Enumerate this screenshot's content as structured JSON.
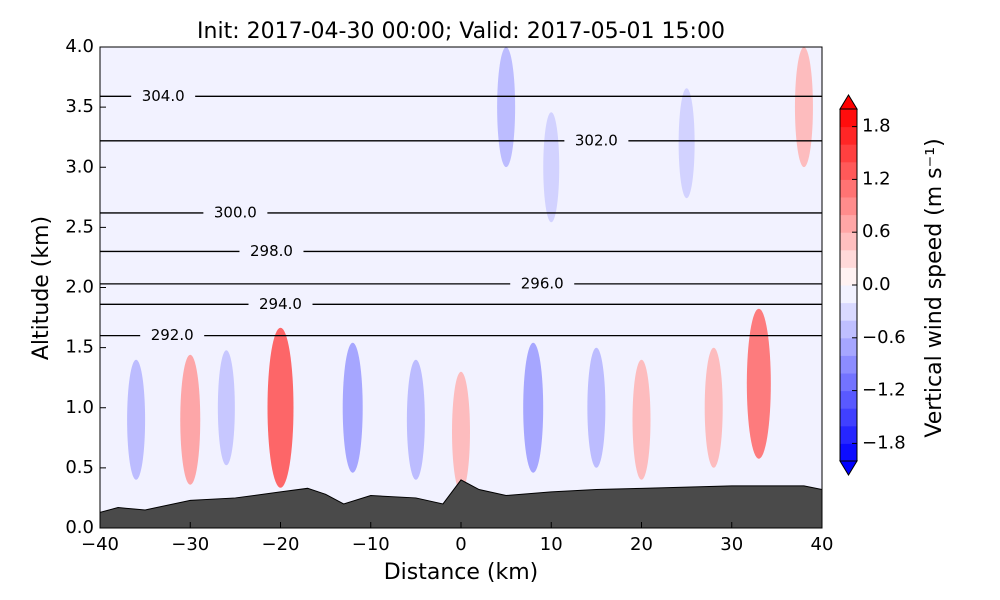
{
  "chart_data": {
    "type": "cross-section",
    "title": "Init: 2017-04-30 00:00; Valid: 2017-05-01 15:00",
    "xlabel": "Distance (km)",
    "ylabel": "Altitude (km)",
    "xlim": [
      -40,
      40
    ],
    "xticks": [
      {
        "value": -40,
        "label": "−40"
      },
      {
        "value": -30,
        "label": "−30"
      },
      {
        "value": -20,
        "label": "−20"
      },
      {
        "value": -10,
        "label": "−10"
      },
      0,
      10,
      20,
      30,
      40
    ],
    "ylim": [
      0,
      4
    ],
    "yticks": [
      {
        "value": 0,
        "label": "0.0"
      },
      {
        "value": 0.5,
        "label": "0.5"
      },
      {
        "value": 1,
        "label": "1.0"
      },
      {
        "value": 1.5,
        "label": "1.5"
      },
      {
        "value": 2,
        "label": "2.0"
      },
      {
        "value": 2.5,
        "label": "2.5"
      },
      {
        "value": 3,
        "label": "3.0"
      },
      {
        "value": 3.5,
        "label": "3.5"
      },
      {
        "value": 4,
        "label": "4.0"
      }
    ],
    "colorbar_label": "Vertical wind speed (m s⁻¹)",
    "clim": [
      -2,
      2
    ],
    "cticks": [
      {
        "value": -1.8,
        "label": "−1.8"
      },
      {
        "value": -1.2,
        "label": "−1.2"
      },
      {
        "value": -0.6,
        "label": "−0.6"
      },
      {
        "value": 0,
        "label": "0.0"
      },
      {
        "value": 0.6,
        "label": "0.6"
      },
      {
        "value": 1.2,
        "label": "1.2"
      },
      {
        "value": 1.8,
        "label": "1.8"
      }
    ],
    "features": [
      {
        "x": -20,
        "y": 1.0,
        "value": 1.4
      },
      {
        "x": -30,
        "y": 0.9,
        "value": 0.8
      },
      {
        "x": 33,
        "y": 1.2,
        "value": 1.2
      },
      {
        "x": 38,
        "y": 3.5,
        "value": 0.6
      },
      {
        "x": 0,
        "y": 0.8,
        "value": 0.6
      },
      {
        "x": -12,
        "y": 1.0,
        "value": -0.8
      },
      {
        "x": 5,
        "y": 3.5,
        "value": -0.6
      },
      {
        "x": 8,
        "y": 1.0,
        "value": -0.8
      },
      {
        "x": -5,
        "y": 0.9,
        "value": -0.6
      },
      {
        "x": 20,
        "y": 0.9,
        "value": 0.6
      },
      {
        "x": 25,
        "y": 3.2,
        "value": -0.4
      },
      {
        "x": -36,
        "y": 0.9,
        "value": -0.6
      },
      {
        "x": 15,
        "y": 1.0,
        "value": -0.6
      },
      {
        "x": 28,
        "y": 1.0,
        "value": 0.6
      },
      {
        "x": -26,
        "y": 1.0,
        "value": -0.5
      },
      {
        "x": 10,
        "y": 3.0,
        "value": -0.4
      }
    ],
    "contours": [
      {
        "value": 304,
        "label": "304.0",
        "x": -33,
        "y": 3.59
      },
      {
        "value": 302,
        "label": "302.0",
        "x": 15,
        "y": 3.22
      },
      {
        "value": 300,
        "label": "300.0",
        "x": -25,
        "y": 2.62
      },
      {
        "value": 298,
        "label": "298.0",
        "x": -21,
        "y": 2.3
      },
      {
        "value": 296,
        "label": "296.0",
        "x": 9,
        "y": 2.03
      },
      {
        "value": 294,
        "label": "294.0",
        "x": -20,
        "y": 1.86
      },
      {
        "value": 292,
        "label": "292.0",
        "x": -32,
        "y": 1.6
      }
    ],
    "terrain": {
      "color": "#4a4a4a",
      "x": [
        -40,
        -38,
        -35,
        -30,
        -25,
        -20,
        -17,
        -15,
        -13,
        -10,
        -5,
        -2,
        0,
        2,
        5,
        10,
        15,
        20,
        30,
        38,
        40
      ],
      "values": [
        0.13,
        0.17,
        0.15,
        0.23,
        0.25,
        0.3,
        0.33,
        0.28,
        0.2,
        0.27,
        0.25,
        0.2,
        0.4,
        0.32,
        0.27,
        0.3,
        0.32,
        0.33,
        0.35,
        0.35,
        0.32
      ]
    }
  }
}
